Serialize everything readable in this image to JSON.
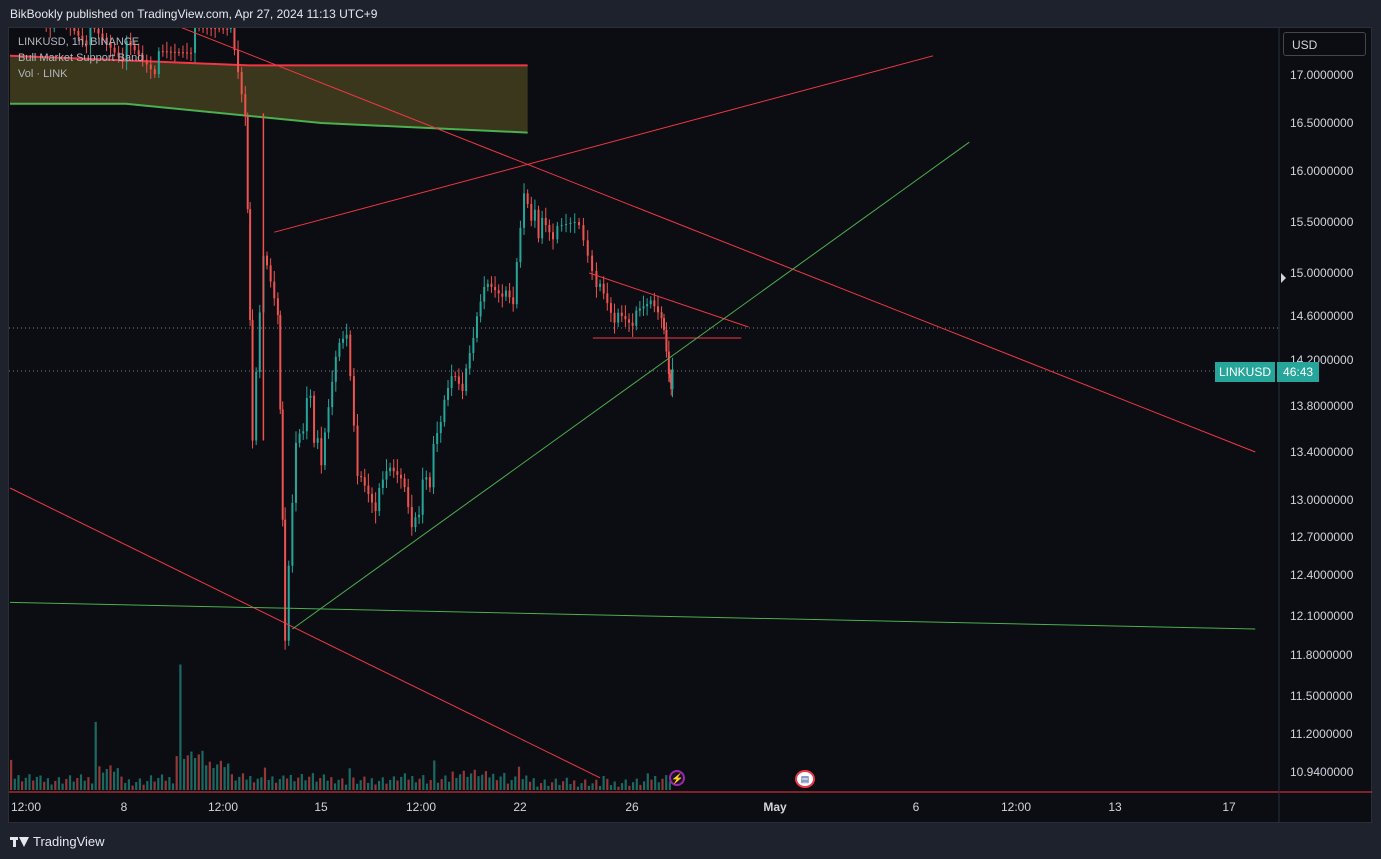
{
  "header": {
    "published": "BikBookly published on TradingView.com, Apr 27, 2024 11:13 UTC+9"
  },
  "legend": {
    "symbol": "LINKUSD, 1h, BINANCE",
    "indicator": "Bull Market Support Band",
    "volume": "Vol · LINK"
  },
  "price_scale": {
    "currency": "USD"
  },
  "price_tag": {
    "symbol": "LINKUSD",
    "countdown": "46:43"
  },
  "footer": {
    "brand": "TradingView"
  },
  "events": {
    "bolt_icon": "lightning-event-icon",
    "flag_icon": "us-flag-event-icon"
  },
  "colors": {
    "up": "#26a69a",
    "down": "#ef5350",
    "band_fill": "#3d3a1e",
    "band_top": "#f23645",
    "band_bottom": "#4caf50",
    "trend_red": "#f23645",
    "trend_green": "#4caf50",
    "background": "#0b0d12"
  },
  "chart_data": {
    "type": "line",
    "symbol": "LINKUSD",
    "timeframe": "1h",
    "exchange": "BINANCE",
    "y_ticks": [
      17.0,
      16.5,
      16.0,
      15.5,
      15.0,
      14.6,
      14.2,
      13.8,
      13.4,
      13.0,
      12.7,
      12.4,
      12.1,
      11.8,
      11.5,
      11.2,
      10.94
    ],
    "y_tick_labels": [
      "17.0000000",
      "16.5000000",
      "16.0000000",
      "15.5000000",
      "15.0000000",
      "14.6000000",
      "14.2000000",
      "13.8000000",
      "13.4000000",
      "13.0000000",
      "12.7000000",
      "12.4000000",
      "12.1000000",
      "11.8000000",
      "11.5000000",
      "11.2000000",
      "10.9400000"
    ],
    "x_ticks": [
      "12:00",
      "8",
      "12:00",
      "15",
      "12:00",
      "22",
      "26",
      "May",
      "6",
      "12:00",
      "13",
      "17"
    ],
    "last_price": 14.1,
    "price_series": [
      [
        0,
        17.8
      ],
      [
        4,
        17.1
      ],
      [
        6,
        17.6
      ],
      [
        6.5,
        16.6
      ],
      [
        6.7,
        13.5
      ],
      [
        7.0,
        15.2
      ],
      [
        7.4,
        14.7
      ],
      [
        7.6,
        12.0
      ],
      [
        7.9,
        13.6
      ],
      [
        8.3,
        13.8
      ],
      [
        8.6,
        13.2
      ],
      [
        9.0,
        14.2
      ],
      [
        9.3,
        14.4
      ],
      [
        9.6,
        13.2
      ],
      [
        10.1,
        13.0
      ],
      [
        10.4,
        13.3
      ],
      [
        10.8,
        13.3
      ],
      [
        11.1,
        12.9
      ],
      [
        11.5,
        13.1
      ],
      [
        11.9,
        13.6
      ],
      [
        12.2,
        14.0
      ],
      [
        12.5,
        13.9
      ],
      [
        12.8,
        14.4
      ],
      [
        13.1,
        14.9
      ],
      [
        13.6,
        14.9
      ],
      [
        13.9,
        14.8
      ],
      [
        14.2,
        15.9
      ],
      [
        14.5,
        15.5
      ],
      [
        15.0,
        15.3
      ],
      [
        15.6,
        15.5
      ],
      [
        16.2,
        14.9
      ],
      [
        16.7,
        14.6
      ],
      [
        17.2,
        14.6
      ],
      [
        17.6,
        14.8
      ],
      [
        18.0,
        14.7
      ],
      [
        18.2,
        14.2
      ],
      [
        18.3,
        14.0
      ]
    ],
    "volume_series": [
      14,
      10,
      12,
      30,
      8,
      12,
      55,
      40,
      14,
      10,
      16,
      12,
      8,
      10,
      14,
      10,
      22,
      18,
      10,
      6,
      6,
      4,
      6,
      14
    ],
    "indicator_band": {
      "name": "Bull Market Support Band",
      "upper": [
        [
          0,
          17.2
        ],
        [
          6.6,
          17.1
        ],
        [
          14.3,
          17.1
        ]
      ],
      "lower": [
        [
          0,
          16.7
        ],
        [
          3.2,
          16.7
        ],
        [
          8.6,
          16.5
        ],
        [
          14.3,
          16.4
        ]
      ]
    },
    "trendlines": [
      {
        "color": "red",
        "points": [
          [
            7.3,
            15.4
          ],
          [
            25.5,
            17.2
          ]
        ]
      },
      {
        "color": "red",
        "points": [
          [
            0,
            18.2
          ],
          [
            34.4,
            13.4
          ]
        ]
      },
      {
        "color": "red",
        "points": [
          [
            0,
            13.1
          ],
          [
            16.3,
            10.9
          ]
        ]
      },
      {
        "color": "red",
        "points": [
          [
            16.0,
            15.0
          ],
          [
            20.4,
            14.5
          ]
        ]
      },
      {
        "color": "red",
        "points": [
          [
            16.1,
            14.4
          ],
          [
            20.2,
            14.4
          ]
        ]
      },
      {
        "color": "green",
        "points": [
          [
            7.8,
            12.0
          ],
          [
            26.5,
            16.3
          ]
        ]
      },
      {
        "color": "green",
        "points": [
          [
            0,
            12.2
          ],
          [
            34.4,
            12.0
          ]
        ]
      }
    ],
    "ylim": [
      10.94,
      17.0
    ],
    "grid": false
  }
}
